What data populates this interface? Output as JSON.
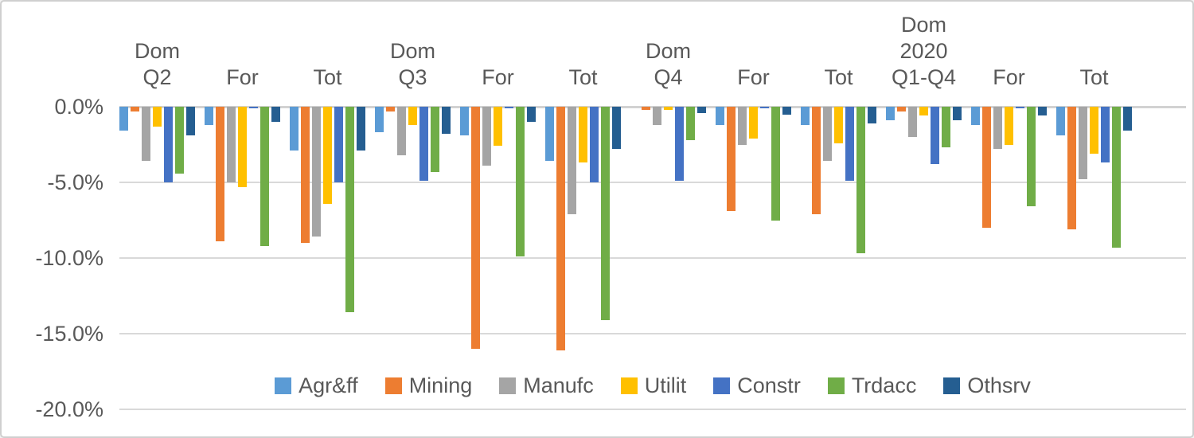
{
  "chart_data": {
    "type": "bar",
    "title": "",
    "orientation": "vertical-negative",
    "categories": [
      "Dom Q2",
      "For",
      "Tot",
      "Dom Q3",
      "For",
      "Tot",
      "Dom Q4",
      "For",
      "Tot",
      "Dom 2020 Q1-Q4",
      "For",
      "Tot"
    ],
    "category_lines": [
      [
        "Dom",
        "Q2"
      ],
      [
        "For"
      ],
      [
        "Tot"
      ],
      [
        "Dom",
        "Q3"
      ],
      [
        "For"
      ],
      [
        "Tot"
      ],
      [
        "Dom",
        "Q4"
      ],
      [
        "For"
      ],
      [
        "Tot"
      ],
      [
        "Dom",
        "2020",
        "Q1-Q4"
      ],
      [
        "For"
      ],
      [
        "Tot"
      ]
    ],
    "series": [
      {
        "name": "Agr&ff",
        "color": "#5B9BD5",
        "values": [
          -1.6,
          -1.2,
          -2.9,
          -1.7,
          -1.9,
          -3.6,
          0.0,
          -1.2,
          -1.2,
          -0.9,
          -1.2,
          -1.9
        ]
      },
      {
        "name": "Mining",
        "color": "#ED7D31",
        "values": [
          -0.3,
          -8.9,
          -9.0,
          -0.3,
          -16.0,
          -16.1,
          -0.2,
          -6.9,
          -7.1,
          -0.3,
          -8.0,
          -8.1
        ]
      },
      {
        "name": "Manufc",
        "color": "#A5A5A5",
        "values": [
          -3.6,
          -5.0,
          -8.6,
          -3.2,
          -3.9,
          -7.1,
          -1.2,
          -2.5,
          -3.6,
          -2.0,
          -2.8,
          -4.8
        ]
      },
      {
        "name": "Utilit",
        "color": "#FFC000",
        "values": [
          -1.3,
          -5.3,
          -6.4,
          -1.2,
          -2.6,
          -3.7,
          -0.2,
          -2.1,
          -2.4,
          -0.6,
          -2.5,
          -3.1
        ]
      },
      {
        "name": "Constr",
        "color": "#4472C4",
        "values": [
          -5.0,
          -0.1,
          -5.0,
          -4.9,
          -0.1,
          -5.0,
          -4.9,
          -0.1,
          -4.9,
          -3.8,
          -0.1,
          -3.7
        ]
      },
      {
        "name": "Trdacc",
        "color": "#70AD47",
        "values": [
          -4.4,
          -9.2,
          -13.6,
          -4.3,
          -9.9,
          -14.1,
          -2.2,
          -7.5,
          -9.7,
          -2.7,
          -6.6,
          -9.3
        ]
      },
      {
        "name": "Othsrv",
        "color": "#255E91",
        "values": [
          -1.9,
          -1.0,
          -2.9,
          -1.8,
          -1.0,
          -2.8,
          -0.4,
          -0.5,
          -1.1,
          -0.9,
          -0.6,
          -1.6
        ]
      }
    ],
    "y_axis": {
      "unit": "%",
      "ticks": [
        "0.0%",
        "-5.0%",
        "-10.0%",
        "-15.0%",
        "-20.0%"
      ],
      "tick_values": [
        0,
        -5,
        -10,
        -15,
        -20
      ],
      "min": -20,
      "max": 0
    },
    "grid": true,
    "legend_position": "bottom-center"
  },
  "styles": {
    "text_color": "#595959",
    "gridline_color": "#D9D9D9",
    "zero_line_color": "#D2D2D2",
    "background": "#FFFFFF",
    "border_color": "#CFCFCF"
  }
}
